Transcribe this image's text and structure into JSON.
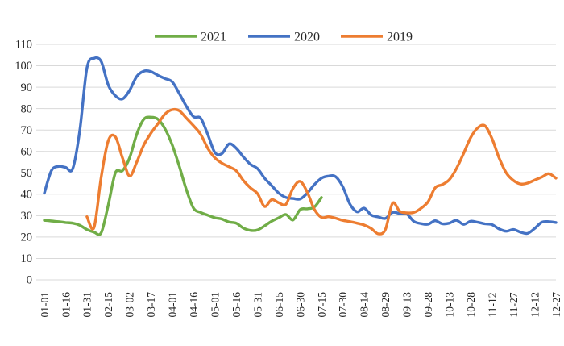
{
  "chart_data": {
    "type": "line",
    "title": "",
    "xlabel": "",
    "ylabel": "",
    "ylim": [
      0,
      110
    ],
    "ytick_step": 10,
    "y_ticks": [
      "0",
      "10",
      "20",
      "30",
      "40",
      "50",
      "60",
      "70",
      "80",
      "90",
      "100",
      "110"
    ],
    "x_label_every": 3,
    "x_tick_labels": [
      "01-01",
      "01-16",
      "01-31",
      "02-15",
      "03-02",
      "03-17",
      "04-01",
      "04-16",
      "05-01",
      "05-16",
      "05-31",
      "06-15",
      "06-30",
      "07-15",
      "07-30",
      "08-14",
      "08-29",
      "09-13",
      "09-28",
      "10-13",
      "10-28",
      "11-12",
      "11-27",
      "12-12",
      "12-27"
    ],
    "grid": "horizontal",
    "legend_position": "top",
    "smooth": true,
    "x": [
      "01-01",
      "01-06",
      "01-11",
      "01-16",
      "01-21",
      "01-26",
      "01-31",
      "02-05",
      "02-10",
      "02-15",
      "02-20",
      "02-25",
      "03-02",
      "03-07",
      "03-12",
      "03-17",
      "03-22",
      "03-27",
      "04-01",
      "04-06",
      "04-11",
      "04-16",
      "04-21",
      "04-26",
      "05-01",
      "05-06",
      "05-11",
      "05-16",
      "05-21",
      "05-26",
      "05-31",
      "06-05",
      "06-10",
      "06-15",
      "06-20",
      "06-25",
      "06-30",
      "07-05",
      "07-10",
      "07-15",
      "07-20",
      "07-25",
      "07-30",
      "08-04",
      "08-09",
      "08-14",
      "08-19",
      "08-24",
      "08-29",
      "09-03",
      "09-08",
      "09-13",
      "09-18",
      "09-23",
      "09-28",
      "10-03",
      "10-08",
      "10-13",
      "10-18",
      "10-23",
      "10-28",
      "11-02",
      "11-07",
      "11-12",
      "11-17",
      "11-22",
      "11-27",
      "12-02",
      "12-07",
      "12-12",
      "12-17",
      "12-22",
      "12-27"
    ],
    "series": [
      {
        "name": "2021",
        "color": "#70AD47",
        "values": [
          27.8,
          27.5,
          27.2,
          26.8,
          26.5,
          25.5,
          23.5,
          22.3,
          22,
          35,
          50,
          51,
          57,
          68,
          75,
          76,
          75,
          70.5,
          63,
          53,
          42,
          33.5,
          31.5,
          30.2,
          29,
          28.4,
          27,
          26.5,
          24.2,
          23.1,
          23.3,
          25.2,
          27.4,
          29,
          30.5,
          28,
          32.8,
          33.2,
          34,
          38.5,
          null,
          null,
          null,
          null,
          null,
          null,
          null,
          null,
          null,
          null,
          null,
          null,
          null,
          null,
          null,
          null,
          null,
          null,
          null,
          null,
          null,
          null,
          null,
          null,
          null,
          null,
          null,
          null,
          null,
          null,
          null,
          null,
          null
        ]
      },
      {
        "name": "2020",
        "color": "#4472C4",
        "values": [
          40.5,
          51,
          53,
          52.5,
          52,
          70,
          99,
          103.5,
          102,
          91,
          86,
          84.5,
          88.5,
          95,
          97.5,
          97.3,
          95.5,
          94,
          92.5,
          87,
          81,
          76.2,
          75.5,
          68,
          59.5,
          59,
          63.5,
          61.5,
          57.5,
          54,
          52,
          47.5,
          44,
          40.5,
          38.5,
          38,
          37.8,
          40.5,
          44.5,
          47.5,
          48.5,
          48.2,
          43.5,
          35.5,
          31.8,
          33.5,
          30.3,
          29.4,
          28.7,
          31.5,
          31,
          30.8,
          27.3,
          26.3,
          26,
          27.6,
          26.2,
          26.5,
          27.8,
          25.9,
          27.4,
          26.9,
          26.2,
          25.8,
          23.8,
          22.7,
          23.5,
          22.3,
          21.7,
          24,
          26.9,
          27.2,
          26.8
        ]
      },
      {
        "name": "2019",
        "color": "#ED7D31",
        "values": [
          null,
          null,
          null,
          null,
          null,
          null,
          29.5,
          24.5,
          48,
          65,
          66.8,
          57,
          48.5,
          55,
          63,
          68.5,
          73,
          77.5,
          79.5,
          79,
          75.5,
          72,
          68,
          61.5,
          57,
          54.5,
          52.8,
          51,
          46.5,
          43,
          40.3,
          34.3,
          37.5,
          36,
          35.3,
          42.8,
          46,
          41,
          33,
          29.2,
          29.5,
          28.8,
          27.8,
          27.2,
          26.5,
          25.6,
          24,
          21.5,
          23.5,
          35.8,
          32.1,
          31.3,
          31.5,
          33.4,
          36.5,
          43,
          44.5,
          46.8,
          52,
          59,
          66.5,
          71,
          72,
          66,
          57,
          50,
          46.5,
          44.8,
          45.2,
          46.6,
          48,
          49.6,
          47.5
        ]
      }
    ],
    "legend_items": [
      "2021",
      "2020",
      "2019"
    ]
  },
  "style": {
    "background": "#FFFFFF",
    "grid_color": "#D9D9D9",
    "axis_text_color": "#262626",
    "line_width": 3.4,
    "axis_font_size": 13.5,
    "legend_font_size": 16
  }
}
